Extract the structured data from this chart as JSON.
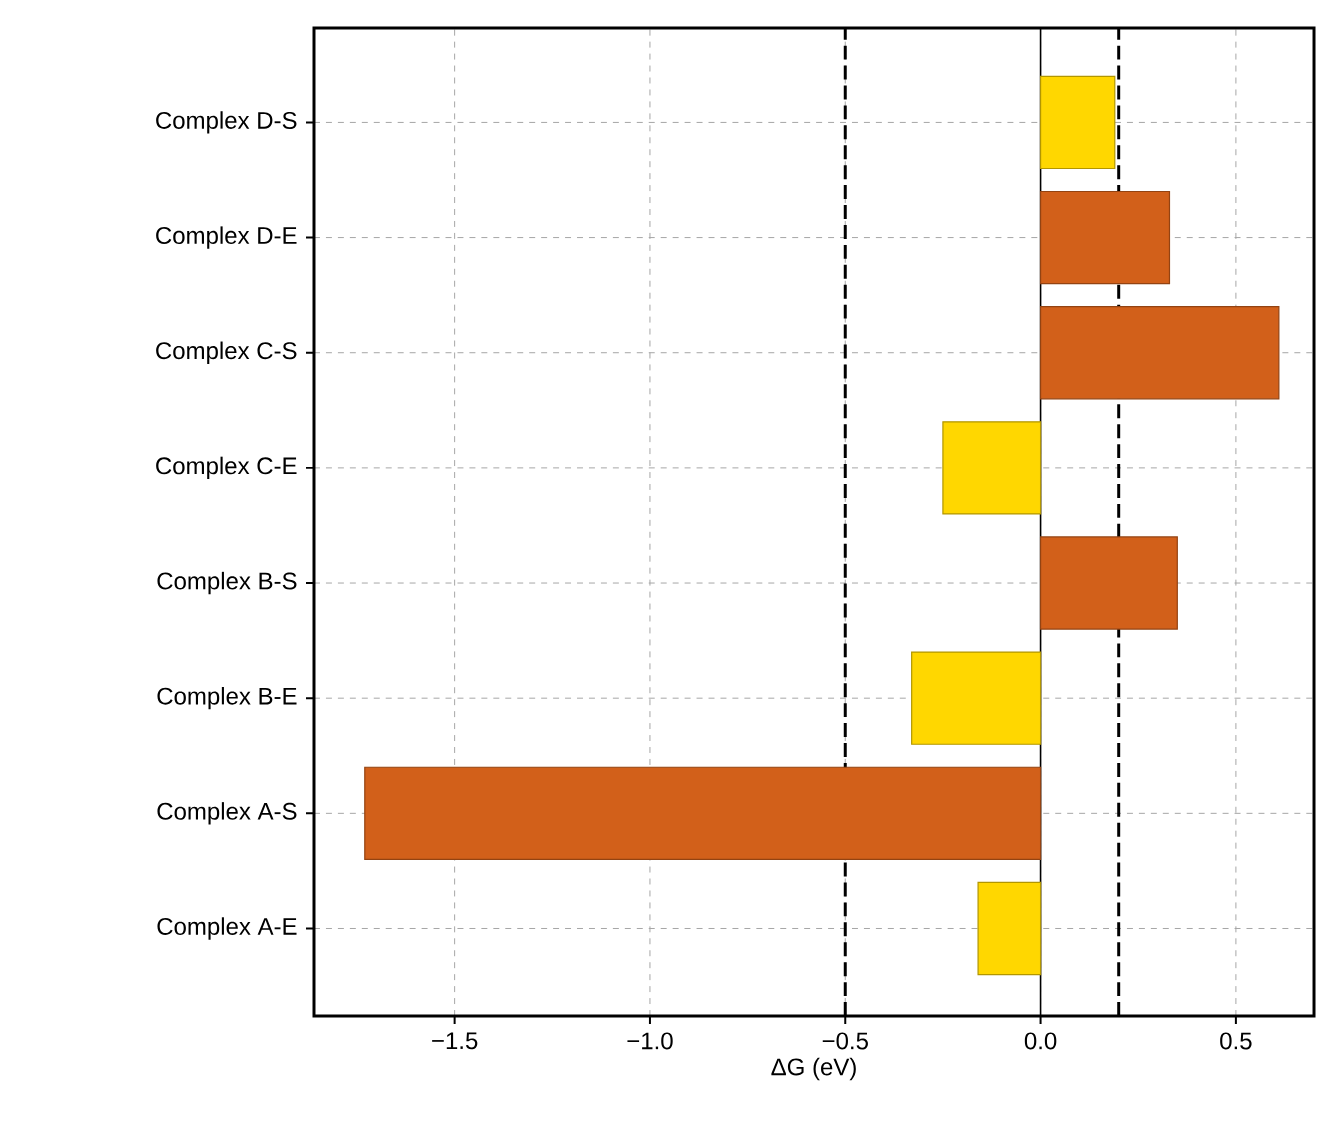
{
  "chart_data": {
    "type": "bar",
    "orientation": "horizontal",
    "xlabel": "ΔG (eV)",
    "categories": [
      "Complex D-S",
      "Complex D-E",
      "Complex C-S",
      "Complex C-E",
      "Complex B-S",
      "Complex B-E",
      "Complex A-S",
      "Complex A-E"
    ],
    "values": [
      0.19,
      0.33,
      0.61,
      -0.25,
      0.35,
      -0.33,
      -1.73,
      -0.16
    ],
    "colors": [
      "#ffd700",
      "#d2601a",
      "#d2601a",
      "#ffd700",
      "#d2601a",
      "#ffd700",
      "#d2601a",
      "#ffd700"
    ],
    "xlim": [
      -1.86,
      0.7
    ],
    "xticks": [
      {
        "value": -1.5,
        "label": "−1.5"
      },
      {
        "value": -1.0,
        "label": "−1.0"
      },
      {
        "value": -0.5,
        "label": "−0.5"
      },
      {
        "value": 0.0,
        "label": "0.0"
      },
      {
        "value": 0.5,
        "label": "0.5"
      }
    ],
    "ref_lines": [
      {
        "axis": "x",
        "value": -0.5,
        "color": "#000000",
        "line_style": "dashed"
      },
      {
        "axis": "x",
        "value": 0.2,
        "color": "#000000",
        "line_style": "dashed"
      },
      {
        "axis": "x",
        "value": 0,
        "color": "#000000",
        "line_style": "solid"
      }
    ],
    "grid": true
  }
}
